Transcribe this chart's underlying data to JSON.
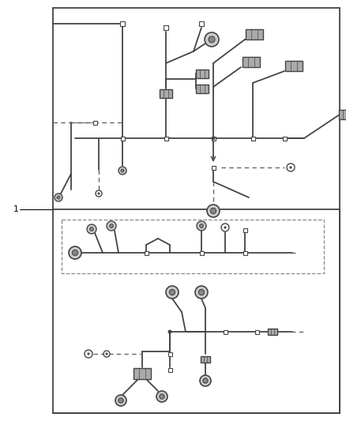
{
  "background": "#ffffff",
  "lc": "#444444",
  "dc": "#666666",
  "border_color": "#111111",
  "label_1": "1",
  "figsize": [
    4.38,
    5.33
  ],
  "dpi": 100
}
